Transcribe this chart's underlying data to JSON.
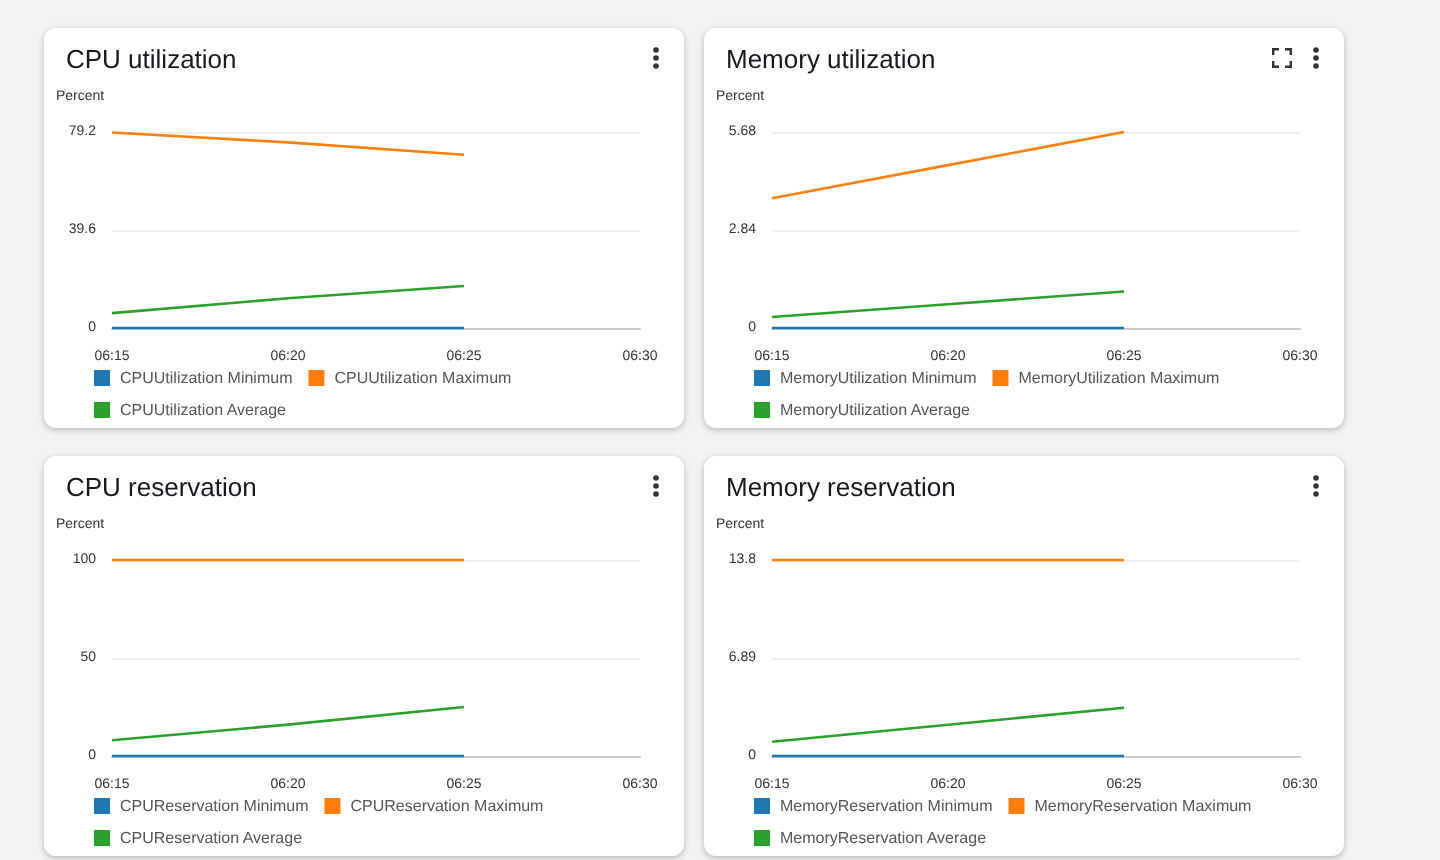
{
  "chart_data": [
    {
      "type": "line",
      "title": "CPU utilization",
      "ylabel": "Percent",
      "categories": [
        "06:15",
        "06:20",
        "06:25",
        "06:30"
      ],
      "ylim": [
        0,
        79.2
      ],
      "yticks": [
        0,
        39.6,
        79.2
      ],
      "grid": "y",
      "legend": "bottom",
      "marker": "none",
      "series": [
        {
          "name": "CPUUtilization Minimum",
          "color": "#1f77b4",
          "values": [
            0,
            0,
            0,
            null
          ]
        },
        {
          "name": "CPUUtilization Maximum",
          "color": "#ff7f0e",
          "values": [
            79,
            75,
            70,
            null
          ]
        },
        {
          "name": "CPUUtilization Average",
          "color": "#2ca02c",
          "values": [
            6,
            12,
            17,
            null
          ]
        }
      ]
    },
    {
      "type": "line",
      "title": "Memory utilization",
      "ylabel": "Percent",
      "categories": [
        "06:15",
        "06:20",
        "06:25",
        "06:30"
      ],
      "ylim": [
        0,
        5.68
      ],
      "yticks": [
        0,
        2.84,
        5.68
      ],
      "grid": "y",
      "legend": "bottom",
      "marker": "none",
      "series": [
        {
          "name": "MemoryUtilization Minimum",
          "color": "#1f77b4",
          "values": [
            0,
            0,
            0,
            null
          ]
        },
        {
          "name": "MemoryUtilization Maximum",
          "color": "#ff7f0e",
          "values": [
            3.76,
            4.72,
            5.68,
            null
          ]
        },
        {
          "name": "MemoryUtilization Average",
          "color": "#2ca02c",
          "values": [
            0.32,
            0.69,
            1.06,
            null
          ]
        }
      ]
    },
    {
      "type": "line",
      "title": "CPU reservation",
      "ylabel": "Percent",
      "categories": [
        "06:15",
        "06:20",
        "06:25",
        "06:30"
      ],
      "ylim": [
        0,
        100
      ],
      "yticks": [
        0,
        50,
        100
      ],
      "grid": "y",
      "legend": "bottom",
      "marker": "none",
      "series": [
        {
          "name": "CPUReservation Minimum",
          "color": "#1f77b4",
          "values": [
            0,
            0,
            0,
            null
          ]
        },
        {
          "name": "CPUReservation Maximum",
          "color": "#ff7f0e",
          "values": [
            100,
            100,
            100,
            null
          ]
        },
        {
          "name": "CPUReservation Average",
          "color": "#2ca02c",
          "values": [
            8,
            16,
            25,
            null
          ]
        }
      ]
    },
    {
      "type": "line",
      "title": "Memory reservation",
      "ylabel": "Percent",
      "categories": [
        "06:15",
        "06:20",
        "06:25",
        "06:30"
      ],
      "ylim": [
        0,
        13.8
      ],
      "yticks": [
        0,
        6.89,
        13.8
      ],
      "grid": "y",
      "legend": "bottom",
      "marker": "none",
      "series": [
        {
          "name": "MemoryReservation Minimum",
          "color": "#1f77b4",
          "values": [
            0,
            0,
            0,
            null
          ]
        },
        {
          "name": "MemoryReservation Maximum",
          "color": "#ff7f0e",
          "values": [
            13.8,
            13.8,
            13.8,
            null
          ]
        },
        {
          "name": "MemoryReservation Average",
          "color": "#2ca02c",
          "values": [
            1.0,
            2.2,
            3.4,
            null
          ]
        }
      ]
    }
  ]
}
